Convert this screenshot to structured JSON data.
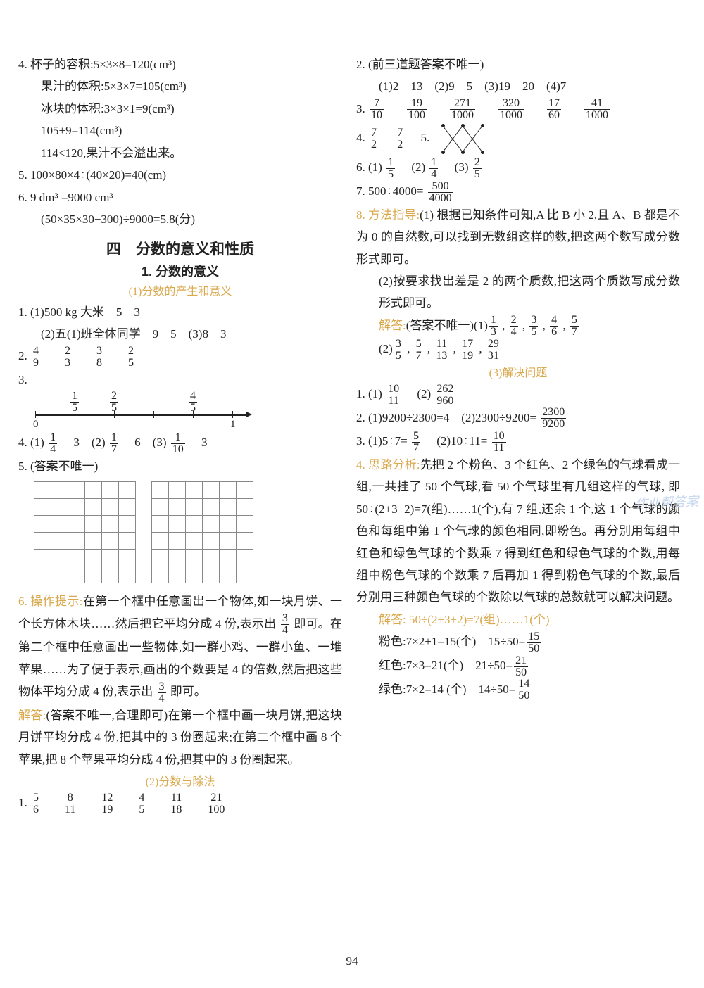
{
  "left": {
    "q4_a": "4. 杯子的容积:5×3×8=120(cm³)",
    "q4_b": "果汁的体积:5×3×7=105(cm³)",
    "q4_c": "冰块的体积:3×3×1=9(cm³)",
    "q4_d": "105+9=114(cm³)",
    "q4_e": "114<120,果汁不会溢出来。",
    "q5": "5. 100×80×4÷(40×20)=40(cm)",
    "q6_a": "6. 9 dm³ =9000 cm³",
    "q6_b": "(50×35×30−300)÷9000=5.8(分)",
    "h1": "四　分数的意义和性质",
    "h2": "1. 分数的意义",
    "h3_1": "(1)分数的产生和意义",
    "s1_a": "1. (1)500 kg 大米　5　3",
    "s1_b": "(2)五(1)班全体同学　9　5　(3)8　3",
    "s2_pre": "2. ",
    "s2": [
      [
        "4",
        "9"
      ],
      [
        "2",
        "3"
      ],
      [
        "3",
        "8"
      ],
      [
        "2",
        "5"
      ]
    ],
    "s3_pre": "3.",
    "nl": {
      "labels": [
        "0",
        "1"
      ],
      "top": [
        [
          "1",
          "5"
        ],
        [
          "2",
          "5"
        ],
        [
          "4",
          "5"
        ]
      ]
    },
    "s4_pre": "4. (1)",
    "s4_a": [
      "1",
      "4"
    ],
    "s4_aT": "　3　(2)",
    "s4_b": [
      "1",
      "7"
    ],
    "s4_bT": "　6　(3)",
    "s4_c": [
      "1",
      "10"
    ],
    "s4_cT": "　3",
    "s5": "5. (答案不唯一)",
    "q6hint": "6. 操作提示:",
    "q6txt1": "在第一个框中任意画出一个物体,如一块月饼、一个长方体木块……然后把它平均分成 4 份,表示出",
    "q6f1": [
      "3",
      "4"
    ],
    "q6txt2": "即可。在第二个框中任意画出一些物体,如一群小鸡、一群小鱼、一堆苹果……为了便于表示,画出的个数要是 4 的倍数,然后把这些物体平均分成 4 份,表示出",
    "q6f2": [
      "3",
      "4"
    ],
    "q6txt3": "即可。",
    "ans_pre": "解答:",
    "ans_txt": "(答案不唯一,合理即可)在第一个框中画一块月饼,把这块月饼平均分成 4 份,把其中的 3 份圈起来;在第二个框中画 8 个苹果,把 8 个苹果平均分成 4 份,把其中的 3 份圈起来。",
    "h3_2": "(2)分数与除法",
    "b1_pre": "1. ",
    "b1": [
      [
        "5",
        "6"
      ],
      [
        "8",
        "11"
      ],
      [
        "12",
        "19"
      ],
      [
        "4",
        "5"
      ],
      [
        "11",
        "18"
      ],
      [
        "21",
        "100"
      ]
    ]
  },
  "right": {
    "q2": "2. (前三道题答案不唯一)",
    "q2b": "(1)2　13　(2)9　5　(3)19　20　(4)7",
    "q3_pre": "3. ",
    "q3": [
      [
        "7",
        "10"
      ],
      [
        "19",
        "100"
      ],
      [
        "271",
        "1000"
      ],
      [
        "320",
        "1000"
      ],
      [
        "17",
        "60"
      ],
      [
        "41",
        "1000"
      ]
    ],
    "q4_pre": "4. ",
    "q4": [
      [
        "7",
        "2"
      ],
      [
        "7",
        "2"
      ]
    ],
    "q5_pre": "5.",
    "q6_pre": "6. (1)",
    "q6": [
      [
        "1",
        "5"
      ],
      [
        "1",
        "4"
      ],
      [
        "2",
        "5"
      ]
    ],
    "q6_sep": [
      "　(2)",
      "　(3)"
    ],
    "q7_pre": "7. 500÷4000=",
    "q7": [
      "500",
      "4000"
    ],
    "q8_hint": "8. 方法指导:",
    "q8_1": "(1) 根据已知条件可知,A 比 B 小 2,且 A、B 都是不为 0 的自然数,可以找到无数组这样的数,把这两个数写成分数形式即可。",
    "q8_2": "(2)按要求找出差是 2 的两个质数,把这两个质数写成分数形式即可。",
    "ans_pre": "解答:",
    "ans1_pre": "(答案不唯一)(1)",
    "ans1": [
      [
        "1",
        "3"
      ],
      [
        "2",
        "4"
      ],
      [
        "3",
        "5"
      ],
      [
        "4",
        "6"
      ],
      [
        "5",
        "7"
      ]
    ],
    "ans2_pre": "(2)",
    "ans2": [
      [
        "3",
        "5"
      ],
      [
        "5",
        "7"
      ],
      [
        "11",
        "13"
      ],
      [
        "17",
        "19"
      ],
      [
        "29",
        "31"
      ]
    ],
    "h3_3": "(3)解决问题",
    "p1_pre": "1. (1)",
    "p1a": [
      "10",
      "11"
    ],
    "p1_mid": "　(2)",
    "p1b": [
      "262",
      "960"
    ],
    "p2a": "2. (1)9200÷2300=4　(2)2300÷9200=",
    "p2f": [
      "2300",
      "9200"
    ],
    "p3_pre": "3. (1)5÷7=",
    "p3a": [
      "5",
      "7"
    ],
    "p3_mid": "　(2)10÷11=",
    "p3b": [
      "10",
      "11"
    ],
    "p4_hint": "4. 思路分析:",
    "p4_txt": "先把 2 个粉色、3 个红色、2 个绿色的气球看成一组,一共挂了 50 个气球,看 50 个气球里有几组这样的气球, 即 50÷(2+3+2)=7(组)……1(个),有 7 组,还余 1 个,这 1 个气球的颜色和每组中第 1 个气球的颜色相同,即粉色。再分别用每组中红色和绿色气球的个数乘 7 得到红色和绿色气球的个数,用每组中粉色气球的个数乘 7 后再加 1 得到粉色气球的个数,最后分别用三种颜色气球的个数除以气球的总数就可以解决问题。",
    "p4_ans1": "解答: 50÷(2+3+2)=7(组)……1(个)",
    "p4_pink": "粉色:7×2+1=15(个)　15÷50=",
    "p4_pf": [
      "15",
      "50"
    ],
    "p4_red": "红色:7×3=21(个)　21÷50=",
    "p4_rf": [
      "21",
      "50"
    ],
    "p4_green": "绿色:7×2=14 (个)　14÷50=",
    "p4_gf": [
      "14",
      "50"
    ]
  },
  "pagenum": "94",
  "watermark": "作业帮答案"
}
